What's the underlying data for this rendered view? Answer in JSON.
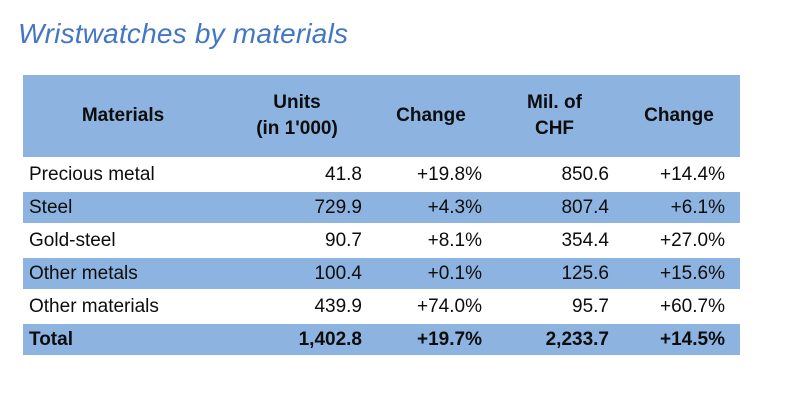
{
  "header": {
    "title": "Wristwatches by materials"
  },
  "colors": {
    "title_blue": "#4377C4",
    "band_blue": "#8DB3E0",
    "row_white": "#FFFFFF",
    "text": "#0D0D0D"
  },
  "table_header": [
    {
      "line1": "Materials",
      "line2": ""
    },
    {
      "line1": "Units",
      "line2": "(in 1'000)"
    },
    {
      "line1": "Change",
      "line2": ""
    },
    {
      "line1": "Mil. of",
      "line2": "CHF"
    },
    {
      "line1": "Change",
      "line2": ""
    }
  ],
  "chart_data": {
    "type": "table",
    "title": "Wristwatches by materials",
    "columns": [
      "Materials",
      "Units (in 1'000)",
      "Change",
      "Mil. of CHF",
      "Change"
    ],
    "rows": [
      [
        "Precious metal",
        "41.8",
        "+19.8%",
        "850.6",
        "+14.4%"
      ],
      [
        "Steel",
        "729.9",
        "+4.3%",
        "807.4",
        "+6.1%"
      ],
      [
        "Gold-steel",
        "90.7",
        "+8.1%",
        "354.4",
        "+27.0%"
      ],
      [
        "Other metals",
        "100.4",
        "+0.1%",
        "125.6",
        "+15.6%"
      ],
      [
        "Other materials",
        "439.9",
        "+74.0%",
        "95.7",
        "+60.7%"
      ],
      [
        "Total",
        "1,402.8",
        "+19.7%",
        "2,233.7",
        "+14.5%"
      ]
    ],
    "layout": {
      "banded_rows": true,
      "band_color": "#8DB3E0",
      "header_color": "#8DB3E0",
      "total_row_bold": true
    }
  }
}
